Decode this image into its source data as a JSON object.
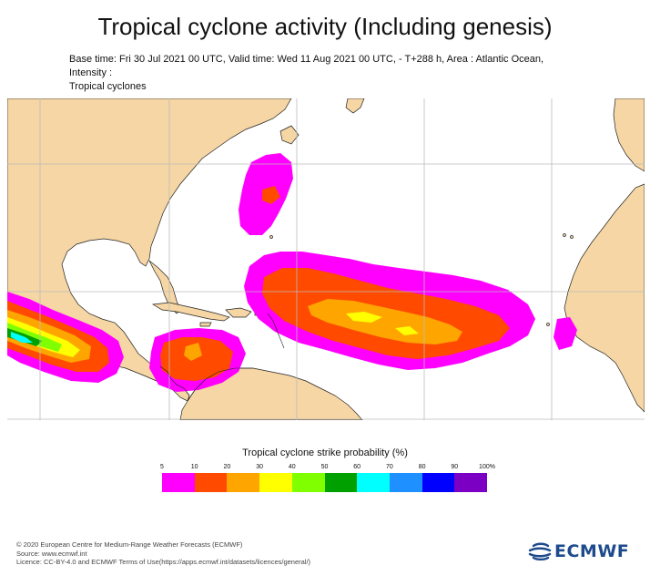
{
  "header": {
    "title": "Tropical cyclone activity (Including genesis)",
    "subtitle_line1": "Base time: Fri 30 Jul 2021 00 UTC, Valid time: Wed 11 Aug 2021 00 UTC, - T+288 h, Area : Atlantic Ocean, Intensity :",
    "subtitle_line2": "Tropical cyclones"
  },
  "map": {
    "ocean_color": "#ffffff",
    "land_color": "#f5d6a4",
    "coast_color": "#222222",
    "grid_color": "#bbbbbb"
  },
  "legend": {
    "title": "Tropical cyclone strike probability (%)",
    "tick_labels": [
      "5",
      "10",
      "20",
      "30",
      "40",
      "50",
      "60",
      "70",
      "80",
      "90",
      "100%"
    ],
    "colors": [
      "#ff00ff",
      "#ff4a00",
      "#ffa500",
      "#ffff00",
      "#7fff00",
      "#00a000",
      "#00ffff",
      "#1e90ff",
      "#0000ff",
      "#7b00c4"
    ]
  },
  "footer": {
    "line1": "© 2020 European Centre for Medium-Range Weather Forecasts (ECMWF)",
    "line2": "Source: www.ecmwf.int",
    "line3": "Licence: CC-BY-4.0 and ECMWF Terms of Use(https://apps.ecmwf.int/datasets/licences/general/)"
  },
  "logo": {
    "text": "ECMWF",
    "icon": "ecmwf-logo-icon",
    "color": "#1e4b8c"
  }
}
